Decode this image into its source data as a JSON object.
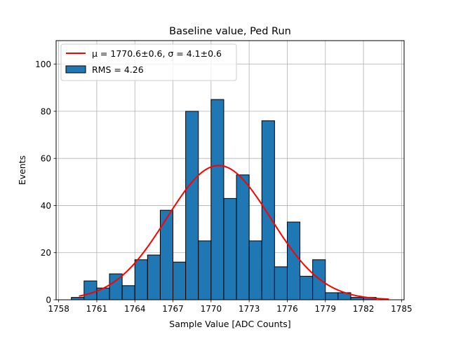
{
  "chart_data": {
    "type": "bar",
    "title": "Baseline value, Ped Run",
    "xlabel": "Sample Value [ADC Counts]",
    "ylabel": "Events",
    "xlim": [
      1757.8,
      1785.2
    ],
    "ylim": [
      0,
      110
    ],
    "grid": true,
    "bar_color": "#1f77b4",
    "fit_color": "#ff0000",
    "x_ticks": [
      1758,
      1761,
      1764,
      1767,
      1770,
      1773,
      1776,
      1779,
      1782,
      1785
    ],
    "y_ticks": [
      0,
      20,
      40,
      60,
      80,
      100
    ],
    "bin_width": 1,
    "bins": [
      {
        "left": 1759,
        "count": 1
      },
      {
        "left": 1760,
        "count": 8
      },
      {
        "left": 1761,
        "count": 5
      },
      {
        "left": 1762,
        "count": 11
      },
      {
        "left": 1763,
        "count": 6
      },
      {
        "left": 1764,
        "count": 17
      },
      {
        "left": 1765,
        "count": 19
      },
      {
        "left": 1766,
        "count": 38
      },
      {
        "left": 1767,
        "count": 16
      },
      {
        "left": 1768,
        "count": 80
      },
      {
        "left": 1769,
        "count": 25
      },
      {
        "left": 1770,
        "count": 85
      },
      {
        "left": 1771,
        "count": 43
      },
      {
        "left": 1772,
        "count": 53
      },
      {
        "left": 1773,
        "count": 25
      },
      {
        "left": 1774,
        "count": 76
      },
      {
        "left": 1775,
        "count": 14
      },
      {
        "left": 1776,
        "count": 33
      },
      {
        "left": 1777,
        "count": 10
      },
      {
        "left": 1778,
        "count": 17
      },
      {
        "left": 1779,
        "count": 3
      },
      {
        "left": 1780,
        "count": 3
      },
      {
        "left": 1781,
        "count": 1
      },
      {
        "left": 1782,
        "count": 1
      }
    ],
    "fit": {
      "mu": 1770.6,
      "sigma": 4.1,
      "amplitude": 57,
      "x_range": [
        1759.6,
        1784
      ]
    },
    "legend": {
      "placement": "upper-left",
      "entries": [
        {
          "label": "μ = 1770.6±0.6, σ = 4.1±0.6",
          "kind": "line"
        },
        {
          "label": "RMS = 4.26",
          "kind": "patch"
        }
      ]
    }
  }
}
